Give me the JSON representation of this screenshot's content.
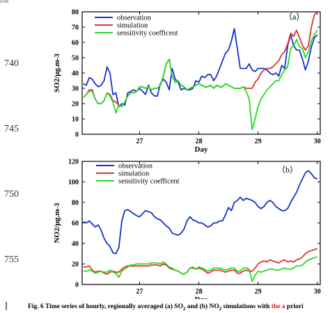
{
  "page": {
    "header_fragment": "ros",
    "line_numbers": [
      "740",
      "745",
      "750",
      "755"
    ],
    "caption_prefix": "Fig. 6 Time series of hourly, regionally averaged (a) SO",
    "caption_mid": " and (b) NO",
    "caption_suffix": " simulations with ",
    "caption_highlight": "the a",
    "caption_end": " priori"
  },
  "colors": {
    "observation": "#1530cc",
    "simulation": "#e03030",
    "sensitivity": "#22dd22"
  },
  "chart_data": [
    {
      "type": "line",
      "panel_label": "（a）",
      "xlabel": "Day",
      "ylabel": "SO2/μg.m-3",
      "xlim": [
        26.03,
        30.05
      ],
      "ylim": [
        0,
        80
      ],
      "x_ticks": [
        27,
        28,
        29,
        30
      ],
      "y_ticks": [
        0,
        10,
        20,
        30,
        40,
        50,
        60,
        70,
        80
      ],
      "series": [
        {
          "name": "observation",
          "x": [
            26.05,
            26.1,
            26.15,
            26.2,
            26.25,
            26.3,
            26.35,
            26.4,
            26.45,
            26.5,
            26.55,
            26.6,
            26.65,
            26.7,
            26.75,
            26.8,
            26.85,
            26.9,
            26.95,
            27.0,
            27.05,
            27.1,
            27.15,
            27.2,
            27.25,
            27.3,
            27.35,
            27.4,
            27.45,
            27.5,
            27.55,
            27.6,
            27.65,
            27.7,
            27.75,
            27.8,
            27.85,
            27.9,
            27.95,
            28.0,
            28.05,
            28.1,
            28.15,
            28.2,
            28.25,
            28.3,
            28.35,
            28.4,
            28.45,
            28.5,
            28.55,
            28.6,
            28.65,
            28.7,
            28.75,
            28.8,
            28.85,
            28.9,
            28.95,
            29.0,
            29.05,
            29.1,
            29.15,
            29.2,
            29.25,
            29.3,
            29.35,
            29.4,
            29.45,
            29.5,
            29.55,
            29.6,
            29.65,
            29.7,
            29.75,
            29.8,
            29.85,
            29.9,
            29.95,
            30.0
          ],
          "values": [
            33,
            32,
            37,
            36,
            33,
            31,
            32,
            35,
            44,
            40,
            26,
            27,
            18,
            20,
            19,
            27,
            28,
            29,
            28,
            30,
            28,
            26,
            32,
            27,
            25,
            25,
            33,
            36,
            34,
            29,
            43,
            36,
            34,
            29,
            30,
            29,
            29,
            30,
            35,
            34,
            38,
            37,
            39,
            39,
            35,
            38,
            43,
            48,
            53,
            55,
            61,
            69,
            56,
            43,
            43,
            43,
            46,
            42,
            41,
            43,
            43,
            43,
            42,
            40,
            39,
            40,
            38,
            45,
            43,
            58,
            65,
            58,
            55,
            55,
            49,
            42,
            48,
            57,
            63,
            65
          ]
        },
        {
          "name": "simulation",
          "x": [
            26.05,
            26.1,
            26.15,
            26.2,
            26.25,
            26.3,
            26.35,
            26.4,
            26.45,
            26.5,
            26.55,
            26.6,
            26.65,
            26.7,
            26.75,
            26.8,
            26.85,
            26.9,
            26.95,
            27.0,
            27.05,
            27.1,
            27.15,
            27.2,
            27.25,
            27.3,
            27.35,
            27.4,
            27.45,
            27.5,
            27.55,
            27.6,
            27.65,
            27.7,
            27.75,
            27.8,
            27.85,
            27.9,
            27.95,
            28.0,
            28.05,
            28.1,
            28.15,
            28.2,
            28.25,
            28.3,
            28.35,
            28.4,
            28.45,
            28.5,
            28.55,
            28.6,
            28.65,
            28.7,
            28.75,
            28.8,
            28.85,
            28.9,
            28.95,
            29.0,
            29.05,
            29.1,
            29.15,
            29.2,
            29.25,
            29.3,
            29.35,
            29.4,
            29.45,
            29.5,
            29.55,
            29.6,
            29.65,
            29.7,
            29.75,
            29.8,
            29.85,
            29.9,
            29.95,
            30.0
          ],
          "values": [
            24,
            26,
            29,
            29,
            23,
            20,
            20,
            22,
            27,
            26,
            22,
            21,
            19,
            18,
            21,
            25,
            27,
            27,
            28,
            31,
            31,
            30,
            31,
            29,
            30,
            30,
            32,
            38,
            46,
            49,
            38,
            34,
            35,
            32,
            31,
            29,
            30,
            31,
            32,
            33,
            32,
            31,
            31,
            32,
            30,
            32,
            31,
            31,
            33,
            32,
            31,
            30,
            30,
            30,
            31,
            30,
            30,
            30,
            34,
            36,
            40,
            42,
            43,
            43,
            44,
            46,
            48,
            52,
            54,
            59,
            66,
            64,
            68,
            63,
            58,
            55,
            58,
            70,
            78,
            80
          ]
        },
        {
          "name": "sensitivity coefficent",
          "x": [
            26.05,
            26.1,
            26.15,
            26.2,
            26.25,
            26.3,
            26.35,
            26.4,
            26.45,
            26.5,
            26.55,
            26.6,
            26.65,
            26.7,
            26.75,
            26.8,
            26.85,
            26.9,
            26.95,
            27.0,
            27.05,
            27.1,
            27.15,
            27.2,
            27.25,
            27.3,
            27.35,
            27.4,
            27.45,
            27.5,
            27.55,
            27.6,
            27.65,
            27.7,
            27.75,
            27.8,
            27.85,
            27.9,
            27.95,
            28.0,
            28.05,
            28.1,
            28.15,
            28.2,
            28.25,
            28.3,
            28.35,
            28.4,
            28.45,
            28.5,
            28.55,
            28.6,
            28.65,
            28.7,
            28.75,
            28.8,
            28.85,
            28.9,
            28.95,
            29.0,
            29.05,
            29.1,
            29.15,
            29.2,
            29.25,
            29.3,
            29.35,
            29.4,
            29.45,
            29.5,
            29.55,
            29.6,
            29.65,
            29.7,
            29.75,
            29.8,
            29.85,
            29.9,
            29.95,
            30.0
          ],
          "values": [
            24,
            26,
            28,
            28,
            23,
            20,
            20,
            22,
            27,
            25,
            21,
            14,
            19,
            18,
            21,
            25,
            27,
            27,
            28,
            31,
            31,
            30,
            31,
            29,
            30,
            30,
            32,
            38,
            46,
            49,
            38,
            34,
            35,
            32,
            31,
            29,
            30,
            31,
            32,
            33,
            32,
            31,
            31,
            32,
            30,
            32,
            31,
            31,
            33,
            32,
            31,
            30,
            30,
            30,
            31,
            28,
            23,
            3,
            10,
            18,
            23,
            26,
            29,
            31,
            33,
            35,
            35,
            39,
            42,
            44,
            56,
            58,
            62,
            57,
            56,
            50,
            54,
            61,
            65,
            68
          ]
        }
      ]
    },
    {
      "type": "line",
      "panel_label": "（b）",
      "xlabel": "Day",
      "ylabel": "NO2/μg.m-3",
      "xlim": [
        26.03,
        30.05
      ],
      "ylim": [
        0,
        120
      ],
      "x_ticks": [
        27,
        28,
        29,
        30
      ],
      "y_ticks": [
        0,
        20,
        40,
        60,
        80,
        100,
        120
      ],
      "series": [
        {
          "name": "observation",
          "x": [
            26.05,
            26.1,
            26.15,
            26.2,
            26.25,
            26.3,
            26.35,
            26.4,
            26.45,
            26.5,
            26.55,
            26.6,
            26.65,
            26.7,
            26.75,
            26.8,
            26.85,
            26.9,
            26.95,
            27.0,
            27.05,
            27.1,
            27.15,
            27.2,
            27.25,
            27.3,
            27.35,
            27.4,
            27.45,
            27.5,
            27.55,
            27.6,
            27.65,
            27.7,
            27.75,
            27.8,
            27.85,
            27.9,
            27.95,
            28.0,
            28.05,
            28.1,
            28.15,
            28.2,
            28.25,
            28.3,
            28.35,
            28.4,
            28.45,
            28.5,
            28.55,
            28.6,
            28.65,
            28.7,
            28.75,
            28.8,
            28.85,
            28.9,
            28.95,
            29.0,
            29.05,
            29.1,
            29.15,
            29.2,
            29.25,
            29.3,
            29.35,
            29.4,
            29.45,
            29.5,
            29.55,
            29.6,
            29.65,
            29.7,
            29.75,
            29.8,
            29.85,
            29.9,
            29.95,
            30.0
          ],
          "values": [
            61,
            60,
            62,
            59,
            56,
            58,
            53,
            45,
            40,
            37,
            31,
            30,
            36,
            62,
            72,
            73,
            71,
            69,
            67,
            66,
            69,
            72,
            71,
            70,
            66,
            64,
            63,
            60,
            57,
            55,
            50,
            49,
            48,
            50,
            54,
            62,
            66,
            63,
            62,
            60,
            60,
            58,
            56,
            57,
            60,
            60,
            62,
            62,
            68,
            75,
            72,
            80,
            82,
            85,
            82,
            84,
            83,
            82,
            80,
            76,
            74,
            76,
            80,
            82,
            80,
            76,
            74,
            72,
            72,
            74,
            80,
            85,
            90,
            97,
            103,
            109,
            111,
            108,
            104,
            103
          ]
        },
        {
          "name": "simulation",
          "x": [
            26.05,
            26.1,
            26.15,
            26.2,
            26.25,
            26.3,
            26.35,
            26.4,
            26.45,
            26.5,
            26.55,
            26.6,
            26.65,
            26.7,
            26.75,
            26.8,
            26.85,
            26.9,
            26.95,
            27.0,
            27.05,
            27.1,
            27.15,
            27.2,
            27.25,
            27.3,
            27.35,
            27.4,
            27.45,
            27.5,
            27.55,
            27.6,
            27.65,
            27.7,
            27.75,
            27.8,
            27.85,
            27.9,
            27.95,
            28.0,
            28.05,
            28.1,
            28.15,
            28.2,
            28.25,
            28.3,
            28.35,
            28.4,
            28.45,
            28.5,
            28.55,
            28.6,
            28.65,
            28.7,
            28.75,
            28.8,
            28.85,
            28.9,
            28.95,
            29.0,
            29.05,
            29.1,
            29.15,
            29.2,
            29.25,
            29.3,
            29.35,
            29.4,
            29.45,
            29.5,
            29.55,
            29.6,
            29.65,
            29.7,
            29.75,
            29.8,
            29.85,
            29.9,
            29.95,
            30.0
          ],
          "values": [
            17,
            17,
            18,
            14,
            12,
            13,
            13,
            11,
            10,
            12,
            13,
            12,
            12,
            15,
            17,
            18,
            18,
            18,
            18,
            18,
            18,
            18,
            18,
            19,
            19,
            19,
            18,
            20,
            19,
            16,
            15,
            14,
            13,
            11,
            10,
            12,
            16,
            16,
            15,
            16,
            15,
            13,
            11,
            12,
            14,
            14,
            14,
            13,
            12,
            13,
            14,
            14,
            11,
            11,
            13,
            14,
            13,
            13,
            16,
            20,
            22,
            23,
            22,
            24,
            23,
            22,
            21,
            23,
            24,
            22,
            23,
            22,
            24,
            25,
            27,
            30,
            32,
            33,
            34,
            35
          ]
        },
        {
          "name": "sensitivity coefficent",
          "x": [
            26.05,
            26.1,
            26.15,
            26.2,
            26.25,
            26.3,
            26.35,
            26.4,
            26.45,
            26.5,
            26.55,
            26.6,
            26.65,
            26.7,
            26.75,
            26.8,
            26.85,
            26.9,
            26.95,
            27.0,
            27.05,
            27.1,
            27.15,
            27.2,
            27.25,
            27.3,
            27.35,
            27.4,
            27.45,
            27.5,
            27.55,
            27.6,
            27.65,
            27.7,
            27.75,
            27.8,
            27.85,
            27.9,
            27.95,
            28.0,
            28.05,
            28.1,
            28.15,
            28.2,
            28.25,
            28.3,
            28.35,
            28.4,
            28.45,
            28.5,
            28.55,
            28.6,
            28.65,
            28.7,
            28.75,
            28.8,
            28.85,
            28.9,
            28.95,
            29.0,
            29.05,
            29.1,
            29.15,
            29.2,
            29.25,
            29.3,
            29.35,
            29.4,
            29.45,
            29.5,
            29.55,
            29.6,
            29.65,
            29.7,
            29.75,
            29.8,
            29.85,
            29.9,
            29.95,
            30.0
          ],
          "values": [
            13,
            13,
            14,
            13,
            11,
            12,
            13,
            12,
            12,
            14,
            12,
            11,
            7,
            13,
            15,
            17,
            19,
            19,
            20,
            20,
            20,
            20,
            20,
            21,
            21,
            21,
            20,
            22,
            20,
            17,
            16,
            14,
            13,
            11,
            10,
            12,
            16,
            17,
            15,
            17,
            16,
            15,
            13,
            14,
            16,
            16,
            16,
            15,
            14,
            15,
            16,
            16,
            13,
            13,
            16,
            16,
            15,
            3,
            9,
            13,
            12,
            13,
            14,
            15,
            15,
            14,
            14,
            15,
            16,
            15,
            15,
            16,
            18,
            18,
            19,
            22,
            24,
            25,
            26,
            27
          ]
        }
      ]
    }
  ]
}
